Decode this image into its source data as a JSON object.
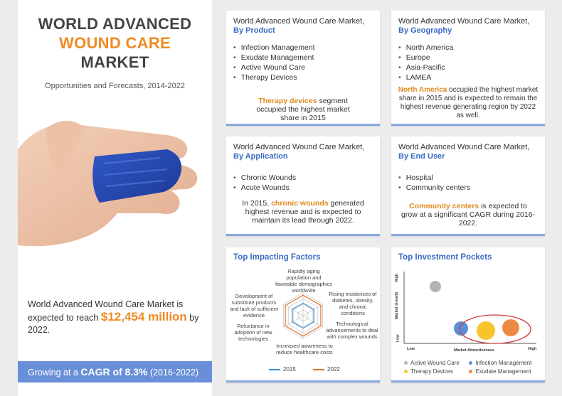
{
  "header": {
    "title_line1": "WORLD ADVANCED",
    "title_line2": "WOUND CARE",
    "title_line3": "MARKET",
    "subtitle": "Opportunities and Forecasts, 2014-2022"
  },
  "summary": {
    "reach_pre": "World Advanced Wound Care Market is expected to reach ",
    "reach_value": "$12,454 million",
    "reach_post": " by 2022.",
    "cagr_pre": "Growing at a ",
    "cagr_value": "CAGR of 8.3%",
    "cagr_post": " (2016-2022)"
  },
  "product": {
    "heading": "World Advanced Wound Care Market,",
    "sub": "By Product",
    "items": [
      "Infection Management",
      "Exudate Management",
      "Active Wound Care",
      "Therapy Devices"
    ],
    "note_hl": "Therapy devices",
    "note_rest": " segment occupied the highest market share in 2015"
  },
  "geography": {
    "heading": "World Advanced Wound Care Market,",
    "sub": "By Geography",
    "items": [
      "North America",
      "Europe",
      "Asia-Pacific",
      "LAMEA"
    ],
    "note_hl": "North America",
    "note_rest": " occupied the highest market share in 2015 and is expected to remain the highest revenue generating region by 2022 as well."
  },
  "application": {
    "heading": "World Advanced Wound Care Market,",
    "sub": "By Application",
    "items": [
      "Chronic Wounds",
      "Acute Wounds"
    ],
    "note_pre": "In 2015, ",
    "note_hl": "chronic wounds",
    "note_rest": " generated highest revenue and is expected to maintain its lead through 2022."
  },
  "enduser": {
    "heading": "World Advanced Wound Care Market,",
    "sub": "By End User",
    "items": [
      "Hospital",
      "Community centers"
    ],
    "note_hl": "Community centers",
    "note_rest": " is expected to grow at a significant CAGR during 2016- 2022."
  },
  "factors": {
    "title": "Top Impacting Factors",
    "labels": [
      "Rapidly aging population and favorable demographics worldwide",
      "Rising incidences of diabetes, obesity, and chronic conditions",
      "Technological advancements to deal with complex wounds",
      "Increased awareness to reduce healthcare costs",
      "Reluctance in adoption of new technologies",
      "Development of substitute products and lack of sufficient evidence"
    ],
    "legend": [
      "2015",
      "2022"
    ],
    "colors": [
      "#3b8fd6",
      "#e0732b"
    ]
  },
  "pockets": {
    "title": "Top Investment Pockets",
    "y_axis": "Market Growth",
    "x_axis": "Market Attractiveness",
    "y_high": "High",
    "y_low": "Low",
    "x_low": "Low",
    "x_high": "High",
    "legend": [
      "Active Wound Care",
      "Infection Management",
      "Therapy Devices",
      "Exudate Management"
    ],
    "colors": [
      "#b3b3b3",
      "#5b8fd9",
      "#f7c52b",
      "#ec8a45"
    ]
  }
}
